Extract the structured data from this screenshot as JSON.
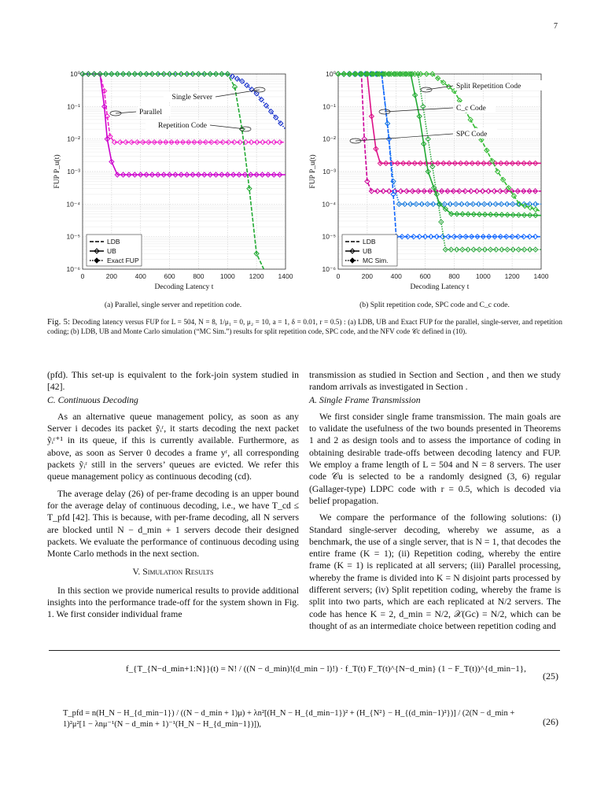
{
  "page_number": "7",
  "figure": {
    "left_chart": {
      "ylabel": "FUP P_u(t)",
      "xlabel": "Decoding Latency t",
      "x_ticks": [
        "0",
        "200",
        "400",
        "600",
        "800",
        "1000",
        "1200",
        "1400"
      ],
      "y_ticks": [
        "10⁰",
        "10⁻¹",
        "10⁻²",
        "10⁻³",
        "10⁻⁴",
        "10⁻⁵",
        "10⁻⁶"
      ],
      "annotations": [
        "Single Server",
        "Parallel",
        "Repetition Code"
      ],
      "legend": [
        "LDB",
        "UB",
        "Exact FUP"
      ],
      "caption": "(a) Parallel, single server and repetition code."
    },
    "right_chart": {
      "ylabel": "FUP P_u(t)",
      "xlabel": "Decoding Latency t",
      "x_ticks": [
        "0",
        "200",
        "400",
        "600",
        "800",
        "1000",
        "1200",
        "1400"
      ],
      "y_ticks": [
        "10⁰",
        "10⁻¹",
        "10⁻²",
        "10⁻³",
        "10⁻⁴",
        "10⁻⁵",
        "10⁻⁶"
      ],
      "annotations": [
        "Split Repetition Code",
        "C_c Code",
        "SPC Code"
      ],
      "legend": [
        "LDB",
        "UB",
        "MC Sim."
      ],
      "caption": "(b) Split repetition code, SPC code and C_c code."
    },
    "caption_label": "Fig. 5:",
    "caption_text": "Decoding latency versus FUP for L = 504, N = 8, 1/μ₁ = 0, μ₂ = 10, a = 1, δ = 0.01, r = 0.5) : (a) LDB, UB and Exact FUP for the parallel, single-server, and repetition coding; (b) LDB, UB and Monte Carlo simulation (“MC Sim.”) results for split repetition code, SPC code, and the NFV code 𝒞c defined in (10)."
  },
  "chart_data": [
    {
      "type": "line",
      "title": "",
      "xlabel": "Decoding Latency t",
      "ylabel": "FUP Pu(t)",
      "xlim": [
        0,
        1400
      ],
      "ylim": [
        1e-06,
        1
      ],
      "yscale": "log",
      "grid": true,
      "legend_position": "bottom-left",
      "series": [
        {
          "name": "Parallel",
          "color": "#ee22cc",
          "x": [
            0,
            120,
            150,
            170,
            190,
            220,
            1400
          ],
          "y": [
            1,
            1,
            0.3,
            0.05,
            0.012,
            0.008,
            0.008
          ]
        },
        {
          "name": "Parallel",
          "color": "#cc00cc",
          "x": [
            0,
            120,
            150,
            170,
            200,
            240,
            1400
          ],
          "y": [
            1,
            1,
            0.1,
            0.01,
            0.002,
            0.0008,
            0.0008
          ]
        },
        {
          "name": "Single Server",
          "color": "#1a33cc",
          "x": [
            0,
            1000,
            1100,
            1200,
            1300,
            1400
          ],
          "y": [
            1,
            1,
            0.6,
            0.25,
            0.07,
            0.02
          ]
        },
        {
          "name": "Repetition Code",
          "color": "#22aa33",
          "x": [
            0,
            1000,
            1050,
            1100,
            1150,
            1200,
            1250
          ],
          "y": [
            1,
            1,
            0.4,
            0.02,
            0.0003,
            3e-06,
            1e-06
          ]
        }
      ]
    },
    {
      "type": "line",
      "title": "",
      "xlabel": "Decoding Latency t",
      "ylabel": "FUP Pu(t)",
      "xlim": [
        0,
        1400
      ],
      "ylim": [
        1e-06,
        1
      ],
      "yscale": "log",
      "grid": true,
      "legend_position": "bottom-left",
      "series": [
        {
          "name": "Split Repetition Code",
          "color": "#cc0099",
          "x": [
            0,
            160,
            180,
            200,
            230,
            1400
          ],
          "y": [
            1,
            1,
            0.01,
            0.0005,
            0.00025,
            0.00025
          ]
        },
        {
          "name": "Split Repetition Code",
          "color": "#dd1188",
          "x": [
            0,
            200,
            230,
            260,
            290,
            1400
          ],
          "y": [
            1,
            1,
            0.05,
            0.005,
            0.0018,
            0.0018
          ]
        },
        {
          "name": "SPC Code",
          "color": "#1177dd",
          "x": [
            0,
            300,
            340,
            380,
            420,
            1400
          ],
          "y": [
            1,
            1,
            0.03,
            0.0005,
            0.0001,
            0.0001
          ]
        },
        {
          "name": "SPC Code",
          "color": "#1166ff",
          "x": [
            0,
            300,
            350,
            380,
            400,
            1400
          ],
          "y": [
            1,
            1,
            0.01,
            0.0002,
            1e-05,
            1e-05
          ]
        },
        {
          "name": "Cc Code",
          "color": "#22aa33",
          "x": [
            0,
            500,
            560,
            620,
            700,
            780,
            1400
          ],
          "y": [
            1,
            1,
            0.05,
            0.001,
            0.0001,
            5e-05,
            4.5e-05
          ]
        },
        {
          "name": "Cc Code",
          "color": "#33aa44",
          "x": [
            0,
            550,
            620,
            680,
            740,
            1400
          ],
          "y": [
            1,
            1,
            0.01,
            0.0002,
            4e-06,
            4e-06
          ]
        },
        {
          "name": "Split Repetition Code",
          "color": "#33bb33",
          "x": [
            0,
            650,
            800,
            950,
            1100,
            1250,
            1400
          ],
          "y": [
            1,
            1,
            0.3,
            0.02,
            0.001,
            0.0001,
            6e-05
          ]
        }
      ]
    }
  ],
  "left_column": {
    "p1": "(pfd). This set-up is equivalent to the fork-join system studied in [42].",
    "sub_c": "C. Continuous Decoding",
    "p2": "As an alternative queue management policy, as soon as any Server i decodes its packet ỹᵢʳ, it starts decoding the next packet ỹᵢʳ⁺¹ in its queue, if this is currently available. Furthermore, as above, as soon as Server 0 decodes a frame yʳ, all corresponding packets ỹᵢʳ still in the servers’ queues are evicted. We refer this queue management policy as continuous decoding (cd).",
    "p3": "The average delay (26) of per-frame decoding is an upper bound for the average delay of continuous decoding, i.e., we have T_cd ≤ T_pfd [42]. This is because, with per-frame decoding, all N servers are blocked until N − d_min + 1 servers decode their designed packets. We evaluate the performance of continuous decoding using Monte Carlo methods in the next section.",
    "section": "V. Simulation Results",
    "p4": "In this section we provide numerical results to provide additional insights into the performance trade-off for the system shown in Fig. 1. We first consider individual frame"
  },
  "right_column": {
    "p1": "transmission as studied in Section and Section , and then we study random arrivals as investigated in Section .",
    "sub_a": "A. Single Frame Transmission",
    "p2": "We first consider single frame transmission. The main goals are to validate the usefulness of the two bounds presented in Theorems 1 and 2 as design tools and to assess the importance of coding in obtaining desirable trade-offs between decoding latency and FUP. We employ a frame length of L = 504 and N = 8 servers. The user code 𝒞u is selected to be a randomly designed (3, 6) regular (Gallager-type) LDPC code with r = 0.5, which is decoded via belief propagation.",
    "p3": "We compare the performance of the following solutions: (i) Standard single-server decoding, whereby we assume, as a benchmark, the use of a single server, that is N = 1, that decodes the entire frame (K = 1); (ii) Repetition coding, whereby the entire frame (K = 1) is replicated at all servers; (iii) Parallel processing, whereby the frame is divided into K = N disjoint parts processed by different servers; (iv) Split repetition coding, whereby the frame is split into two parts, which are each replicated at N/2 servers. The code has hence K = 2, d_min = N/2, 𝒳(Gc) = N/2, which can be thought of as an intermediate choice between repetition coding and"
  },
  "equations": {
    "eq25": "f_{T_{N−d_min+1:N}}(t) = N! / ((N − d_min)!(d_min − l)!) · f_T(t) F_T(t)^{N−d_min} (1 − F_T(t))^{d_min−1},",
    "eq25_num": "(25)",
    "eq26": "T_pfd = n(H_N − H_{d_min−1}) / ((N − d_min + 1)μ) + λn²[(H_N − H_{d_min−1})² + (H_{N²} − H_{(d_min−1)²})] / (2(N − d_min + 1)²μ²[1 − λnμ⁻¹(N − d_min + 1)⁻¹(H_N − H_{d_min−1})]),",
    "eq26_num": "(26)"
  }
}
